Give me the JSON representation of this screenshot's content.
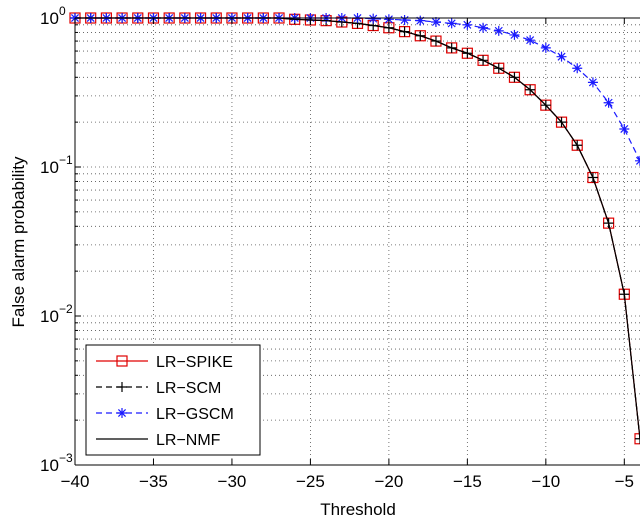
{
  "chart_data": {
    "type": "line",
    "xlabel": "Threshold",
    "ylabel": "False alarm probability",
    "xlim": [
      -40,
      -4
    ],
    "ylim": [
      0.001,
      1
    ],
    "yscale": "log",
    "grid": true,
    "legend_position": "bottom-left",
    "xticks": [
      -40,
      -35,
      -30,
      -25,
      -20,
      -15,
      -10,
      -5
    ],
    "xtick_labels": [
      "−40",
      "−35",
      "−30",
      "−25",
      "−20",
      "−15",
      "−10",
      "−5"
    ],
    "yticks": [
      {
        "value": 1,
        "base": "10",
        "exp": "0"
      },
      {
        "value": 0.1,
        "base": "10",
        "exp": "−1"
      },
      {
        "value": 0.01,
        "base": "10",
        "exp": "−2"
      },
      {
        "value": 0.001,
        "base": "10",
        "exp": "−3"
      }
    ],
    "x": [
      -40,
      -39,
      -38,
      -37,
      -36,
      -35,
      -34,
      -33,
      -32,
      -31,
      -30,
      -29,
      -28,
      -27,
      -26,
      -25,
      -24,
      -23,
      -22,
      -21,
      -20,
      -19,
      -18,
      -17,
      -16,
      -15,
      -14,
      -13,
      -12,
      -11,
      -10,
      -9,
      -8,
      -7,
      -6,
      -5,
      -4
    ],
    "series": [
      {
        "name": "LR−SPIKE",
        "color": "#e00000",
        "dash": "solid",
        "marker": "square",
        "values": [
          1,
          1,
          1,
          1,
          1,
          1,
          1,
          1,
          1,
          1,
          1,
          1,
          1,
          1,
          0.98,
          0.97,
          0.96,
          0.94,
          0.92,
          0.89,
          0.86,
          0.81,
          0.76,
          0.7,
          0.63,
          0.58,
          0.52,
          0.46,
          0.4,
          0.33,
          0.26,
          0.2,
          0.14,
          0.085,
          0.042,
          0.014,
          0.0015
        ]
      },
      {
        "name": "LR−SCM",
        "color": "#000000",
        "dash": "dashed",
        "marker": "plus",
        "values": [
          1,
          1,
          1,
          1,
          1,
          1,
          1,
          1,
          1,
          1,
          1,
          1,
          1,
          1,
          0.98,
          0.97,
          0.96,
          0.94,
          0.92,
          0.89,
          0.86,
          0.81,
          0.76,
          0.7,
          0.63,
          0.58,
          0.52,
          0.46,
          0.4,
          0.33,
          0.26,
          0.2,
          0.14,
          0.085,
          0.042,
          0.014,
          0.0015
        ]
      },
      {
        "name": "LR−GSCM",
        "color": "#1a1aff",
        "dash": "dashed",
        "marker": "star",
        "values": [
          1,
          1,
          1,
          1,
          1,
          1,
          1,
          1,
          1,
          1,
          1,
          1,
          1,
          1,
          1,
          1,
          1,
          1,
          1,
          0.99,
          0.98,
          0.97,
          0.96,
          0.94,
          0.92,
          0.9,
          0.86,
          0.82,
          0.77,
          0.71,
          0.63,
          0.55,
          0.46,
          0.37,
          0.27,
          0.18,
          0.11
        ]
      },
      {
        "name": "LR−NMF",
        "color": "#000000",
        "dash": "solid",
        "marker": "none",
        "values": [
          1,
          1,
          1,
          1,
          1,
          1,
          1,
          1,
          1,
          1,
          1,
          1,
          1,
          1,
          0.98,
          0.97,
          0.96,
          0.94,
          0.92,
          0.89,
          0.86,
          0.81,
          0.76,
          0.7,
          0.63,
          0.58,
          0.52,
          0.46,
          0.4,
          0.33,
          0.26,
          0.2,
          0.14,
          0.085,
          0.042,
          0.014,
          0.0015
        ]
      }
    ]
  }
}
